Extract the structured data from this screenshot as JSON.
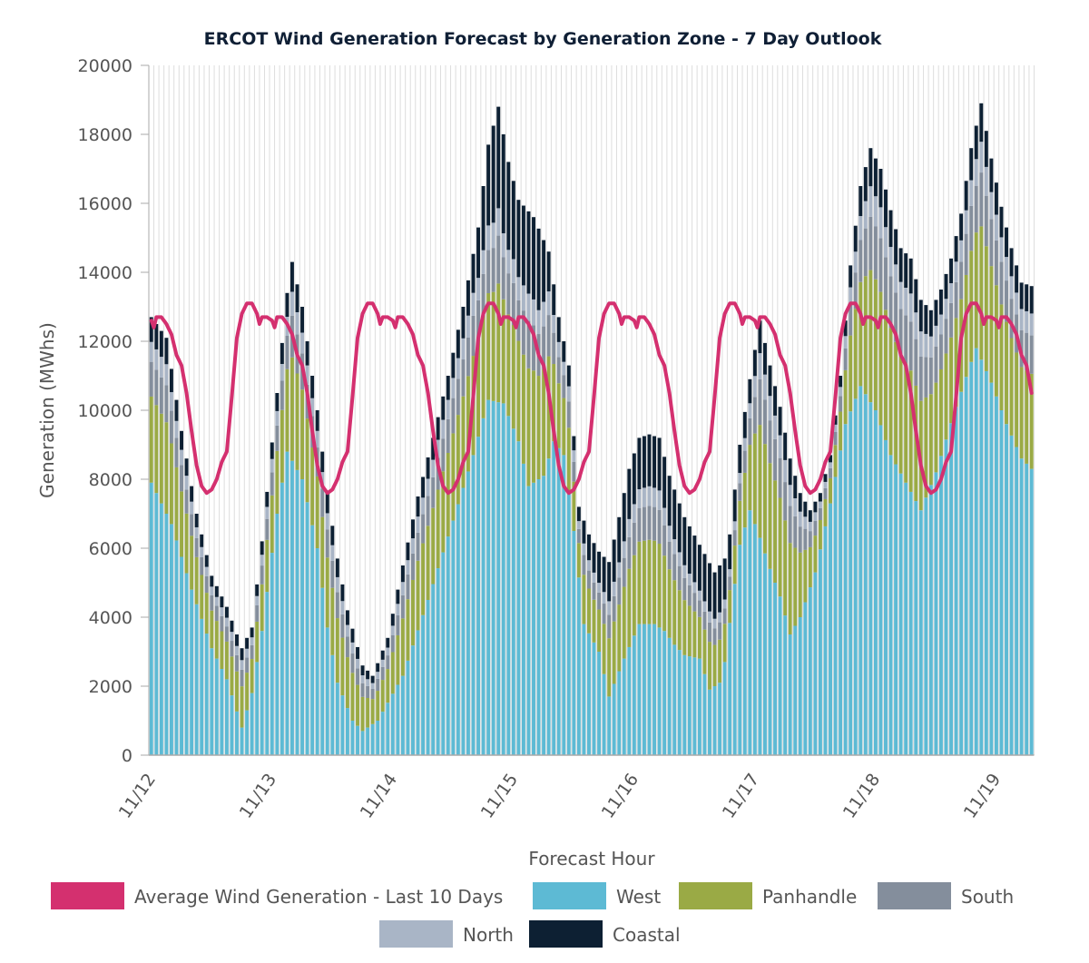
{
  "chart_data": {
    "type": "bar",
    "stacked": true,
    "title": "ERCOT Wind Generation Forecast by Generation Zone - 7 Day Outlook",
    "xlabel": "Forecast Hour",
    "ylabel": "Generation (MWhs)",
    "ylim": [
      0,
      20000
    ],
    "yticks": [
      0,
      2000,
      4000,
      6000,
      8000,
      10000,
      12000,
      14000,
      16000,
      18000,
      20000
    ],
    "xtick_labels": [
      "11/12",
      "11/13",
      "11/14",
      "11/15",
      "11/16",
      "11/17",
      "11/18",
      "11/19"
    ],
    "hours_per_day": 24,
    "grid": "vertical",
    "legend_position": "bottom",
    "colors": {
      "average": "#d4306f",
      "west": "#5dbad4",
      "panhandle": "#9aaa45",
      "south": "#848e9c",
      "north": "#a9b5c6",
      "coastal": "#0d2033",
      "axis": "#aaaaaa",
      "grid": "#dddddd"
    },
    "legend": [
      {
        "key": "average",
        "label": "Average Wind Generation - Last 10 Days"
      },
      {
        "key": "west",
        "label": "West"
      },
      {
        "key": "panhandle",
        "label": "Panhandle"
      },
      {
        "key": "south",
        "label": "South"
      },
      {
        "key": "north",
        "label": "North"
      },
      {
        "key": "coastal",
        "label": "Coastal"
      }
    ],
    "series_order": [
      "west",
      "panhandle",
      "south",
      "north",
      "coastal"
    ],
    "total_anchors": [
      [
        0,
        12700
      ],
      [
        3,
        12100
      ],
      [
        6,
        9400
      ],
      [
        9,
        7000
      ],
      [
        12,
        5200
      ],
      [
        15,
        4300
      ],
      [
        18,
        3100
      ],
      [
        20,
        3700
      ],
      [
        22,
        6200
      ],
      [
        25,
        10500
      ],
      [
        27,
        13400
      ],
      [
        28,
        14300
      ],
      [
        30,
        13000
      ],
      [
        33,
        10000
      ],
      [
        35,
        7600
      ],
      [
        37,
        5700
      ],
      [
        39,
        4200
      ],
      [
        42,
        2600
      ],
      [
        44,
        2300
      ],
      [
        47,
        3400
      ],
      [
        50,
        5500
      ],
      [
        53,
        7500
      ],
      [
        56,
        9200
      ],
      [
        59,
        11000
      ],
      [
        62,
        13000
      ],
      [
        65,
        15300
      ],
      [
        67,
        17700
      ],
      [
        69,
        18800
      ],
      [
        71,
        17200
      ],
      [
        73,
        16100
      ],
      [
        76,
        15600
      ],
      [
        79,
        14600
      ],
      [
        81,
        12700
      ],
      [
        83,
        11300
      ],
      [
        85,
        7200
      ],
      [
        87,
        6400
      ],
      [
        89,
        5900
      ],
      [
        91,
        5600
      ],
      [
        93,
        6900
      ],
      [
        95,
        8300
      ],
      [
        97,
        9200
      ],
      [
        99,
        9300
      ],
      [
        101,
        9200
      ],
      [
        103,
        8100
      ],
      [
        106,
        6900
      ],
      [
        109,
        6100
      ],
      [
        112,
        5300
      ],
      [
        114,
        5700
      ],
      [
        115,
        6400
      ],
      [
        117,
        9000
      ],
      [
        119,
        10900
      ],
      [
        121,
        12600
      ],
      [
        123,
        11300
      ],
      [
        125,
        10100
      ],
      [
        127,
        8600
      ],
      [
        129,
        7600
      ],
      [
        131,
        7100
      ],
      [
        133,
        7600
      ],
      [
        135,
        8700
      ],
      [
        137,
        11000
      ],
      [
        139,
        14200
      ],
      [
        141,
        16500
      ],
      [
        143,
        17600
      ],
      [
        145,
        17000
      ],
      [
        147,
        15800
      ],
      [
        149,
        14700
      ],
      [
        151,
        14400
      ],
      [
        153,
        13200
      ],
      [
        155,
        12900
      ],
      [
        157,
        13500
      ],
      [
        159,
        14400
      ],
      [
        161,
        15700
      ],
      [
        163,
        17600
      ],
      [
        165,
        18900
      ],
      [
        167,
        17300
      ],
      [
        169,
        15900
      ],
      [
        171,
        14700
      ],
      [
        173,
        13700
      ],
      [
        175,
        13600
      ]
    ],
    "west_anchors": [
      [
        0,
        7900
      ],
      [
        4,
        6700
      ],
      [
        8,
        4800
      ],
      [
        12,
        3100
      ],
      [
        15,
        2200
      ],
      [
        18,
        800
      ],
      [
        20,
        1800
      ],
      [
        22,
        3600
      ],
      [
        25,
        7000
      ],
      [
        27,
        8800
      ],
      [
        30,
        8000
      ],
      [
        33,
        6000
      ],
      [
        35,
        3700
      ],
      [
        37,
        2100
      ],
      [
        40,
        1000
      ],
      [
        42,
        700
      ],
      [
        45,
        1000
      ],
      [
        50,
        2300
      ],
      [
        55,
        4500
      ],
      [
        60,
        6800
      ],
      [
        64,
        8700
      ],
      [
        67,
        10300
      ],
      [
        70,
        10200
      ],
      [
        73,
        9100
      ],
      [
        75,
        7800
      ],
      [
        78,
        8100
      ],
      [
        80,
        9100
      ],
      [
        82,
        8700
      ],
      [
        84,
        6500
      ],
      [
        86,
        3800
      ],
      [
        89,
        3000
      ],
      [
        91,
        1700
      ],
      [
        94,
        2800
      ],
      [
        97,
        3800
      ],
      [
        100,
        3800
      ],
      [
        102,
        3600
      ],
      [
        104,
        3200
      ],
      [
        106,
        2900
      ],
      [
        109,
        2800
      ],
      [
        111,
        1900
      ],
      [
        113,
        2100
      ],
      [
        114,
        2700
      ],
      [
        117,
        6100
      ],
      [
        119,
        7100
      ],
      [
        121,
        6300
      ],
      [
        123,
        5400
      ],
      [
        125,
        4600
      ],
      [
        127,
        3500
      ],
      [
        129,
        4000
      ],
      [
        132,
        5300
      ],
      [
        135,
        7300
      ],
      [
        138,
        9600
      ],
      [
        141,
        10700
      ],
      [
        144,
        10000
      ],
      [
        147,
        8700
      ],
      [
        150,
        7900
      ],
      [
        153,
        7100
      ],
      [
        156,
        8200
      ],
      [
        160,
        10100
      ],
      [
        163,
        11400
      ],
      [
        164,
        11800
      ],
      [
        167,
        10800
      ],
      [
        170,
        9600
      ],
      [
        173,
        8600
      ],
      [
        175,
        8300
      ]
    ],
    "share": {
      "panhandle": 0.52,
      "south": 0.21,
      "north": 0.12,
      "coastal": 0.15
    },
    "coastal_extra": [
      [
        0,
        0
      ],
      [
        60,
        0
      ],
      [
        64,
        300
      ],
      [
        66,
        1000
      ],
      [
        68,
        1900
      ],
      [
        70,
        2000
      ],
      [
        72,
        1400
      ],
      [
        75,
        1400
      ],
      [
        77,
        1500
      ],
      [
        79,
        300
      ],
      [
        84,
        0
      ],
      [
        88,
        500
      ],
      [
        94,
        800
      ],
      [
        97,
        800
      ],
      [
        100,
        800
      ],
      [
        104,
        900
      ],
      [
        110,
        1000
      ],
      [
        113,
        1000
      ],
      [
        116,
        600
      ],
      [
        120,
        0
      ],
      [
        175,
        0
      ]
    ],
    "average_anchors": [
      [
        0,
        12600
      ],
      [
        0.5,
        12400
      ],
      [
        1,
        12700
      ],
      [
        2,
        12700
      ],
      [
        3,
        12500
      ],
      [
        4,
        12200
      ],
      [
        5,
        11600
      ],
      [
        6,
        11300
      ],
      [
        7,
        10500
      ],
      [
        8,
        9400
      ],
      [
        9,
        8400
      ],
      [
        10,
        7800
      ],
      [
        11,
        7600
      ],
      [
        12,
        7700
      ],
      [
        13,
        8000
      ],
      [
        14,
        8500
      ],
      [
        15,
        8800
      ],
      [
        16,
        10400
      ],
      [
        17,
        12100
      ],
      [
        18,
        12800
      ],
      [
        19,
        13100
      ],
      [
        20,
        13100
      ],
      [
        21,
        12800
      ],
      [
        21.5,
        12500
      ],
      [
        22,
        12700
      ],
      [
        23,
        12700
      ],
      [
        24,
        12600
      ]
    ]
  }
}
